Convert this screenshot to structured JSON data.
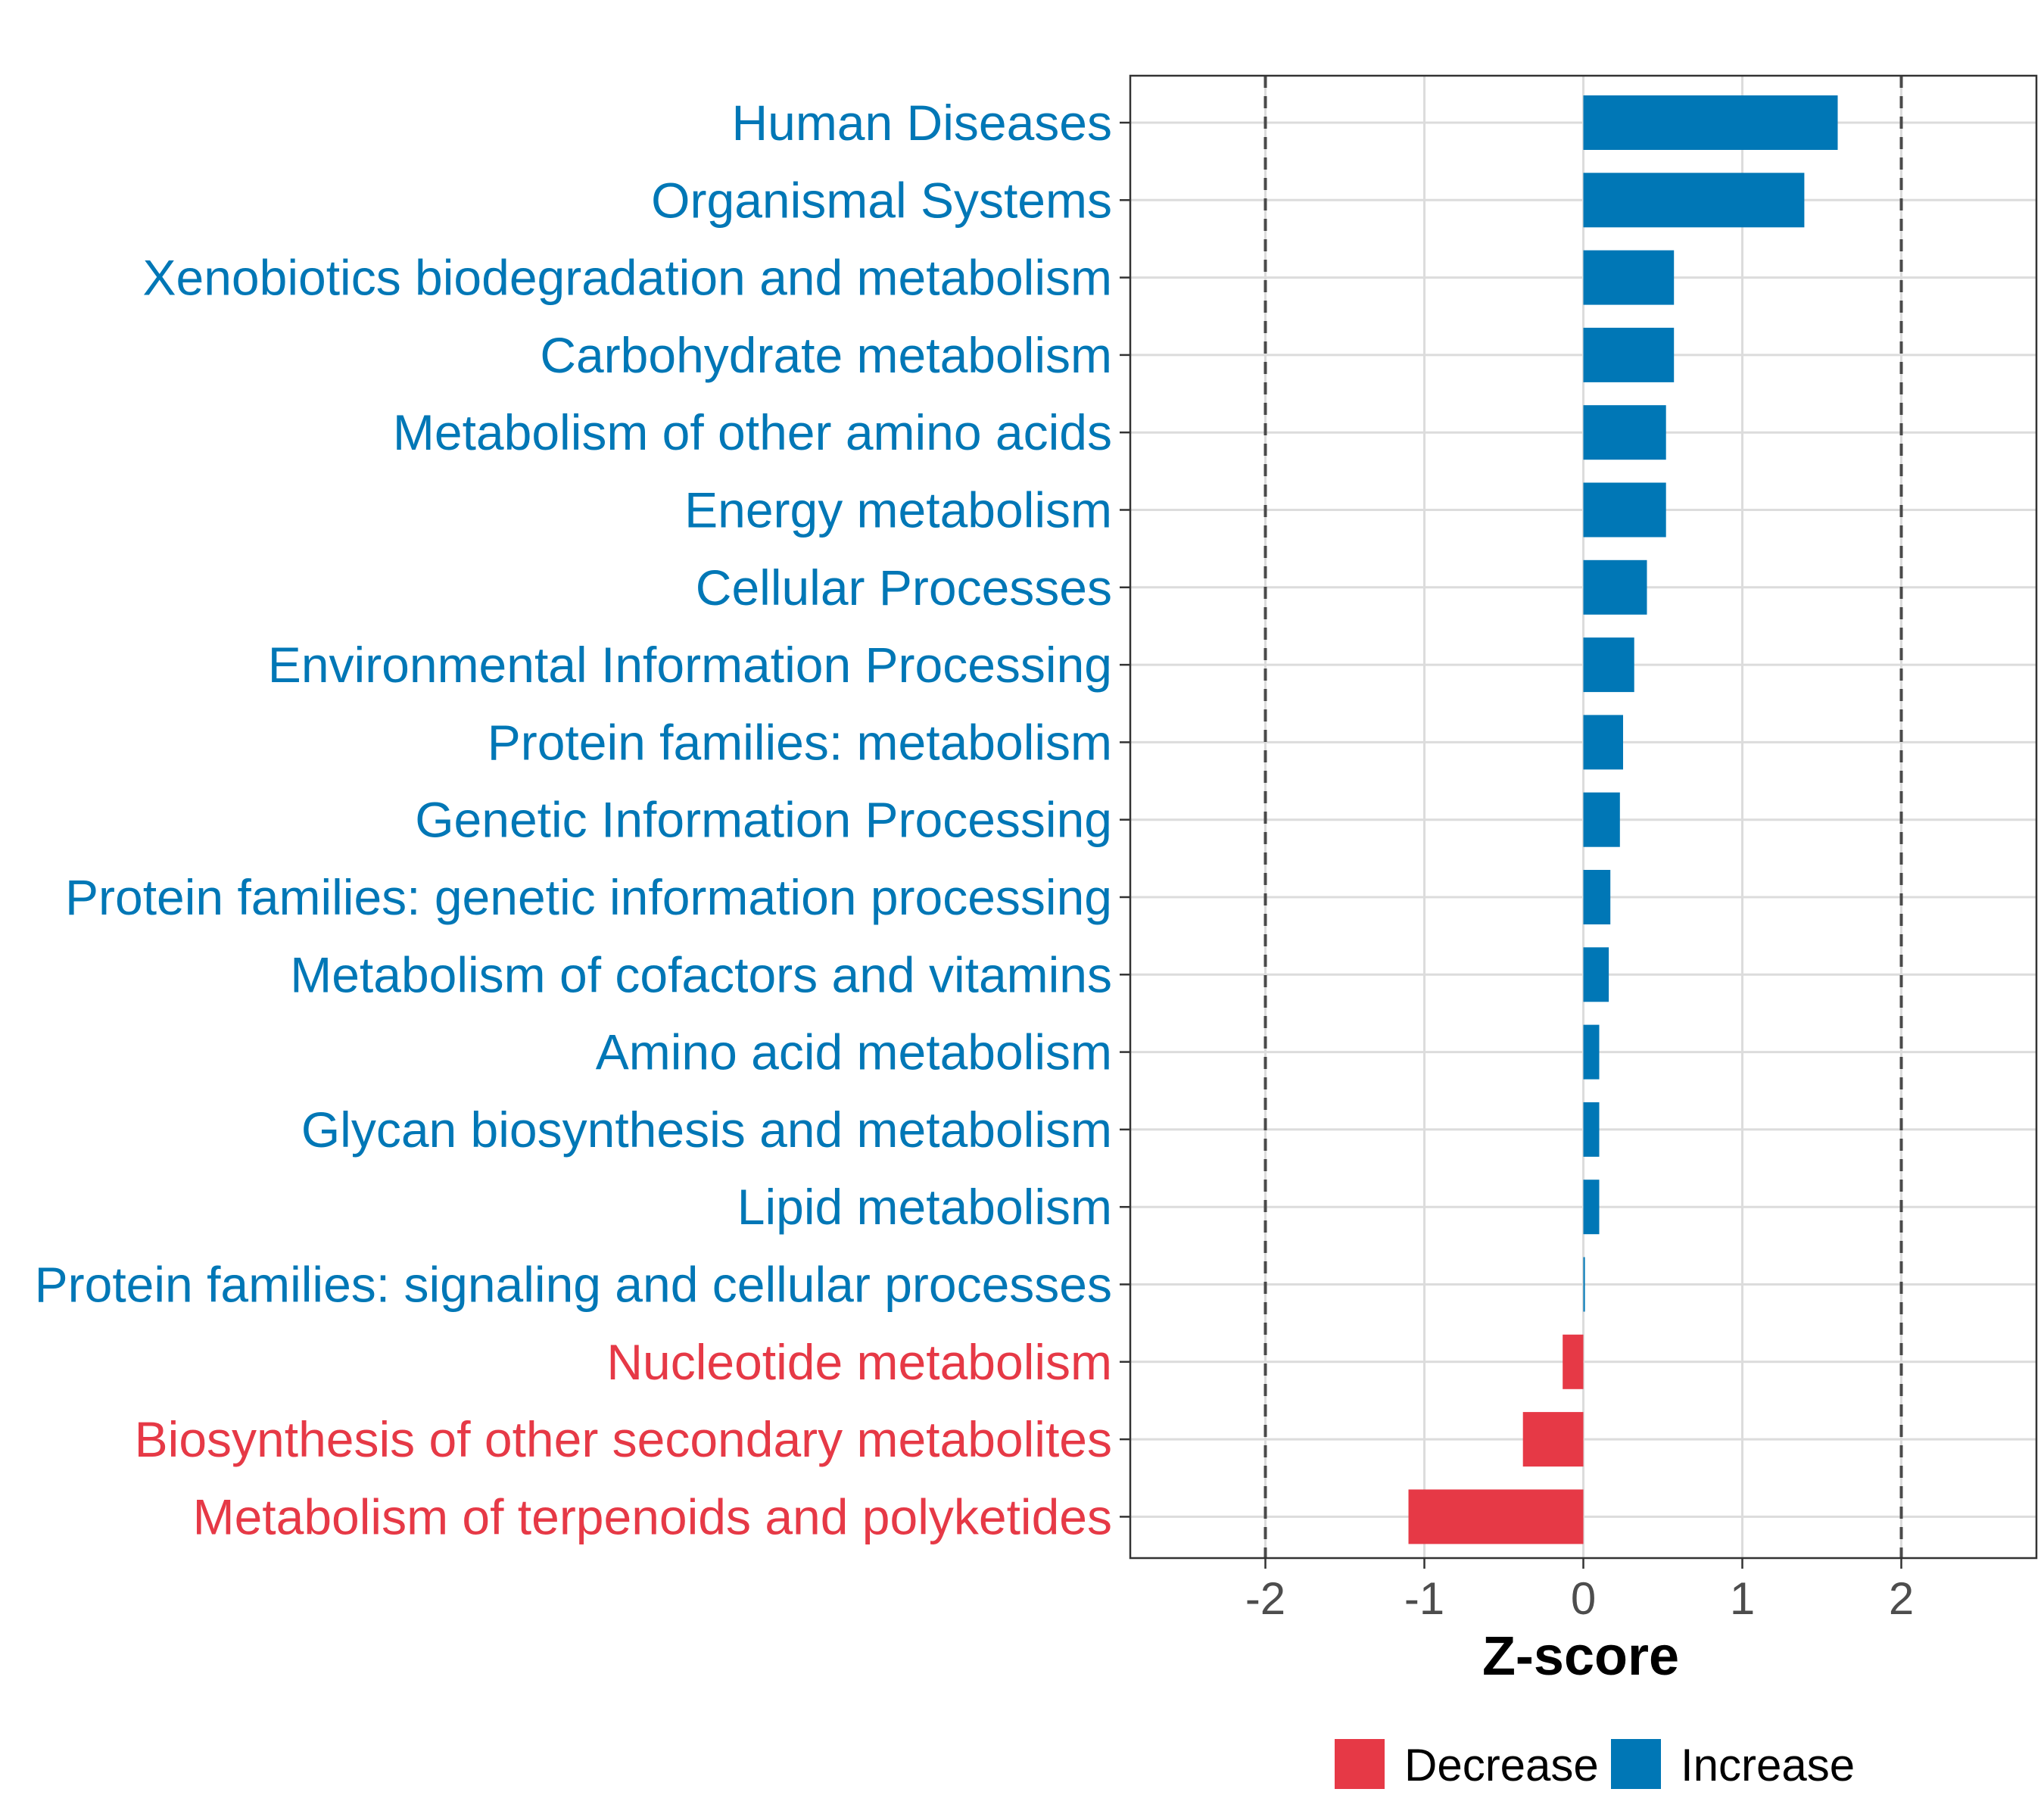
{
  "chart_data": {
    "type": "bar",
    "orientation": "horizontal",
    "title": "",
    "xlabel": "Z-score",
    "ylabel": "",
    "xlim": [
      -2.85,
      2.85
    ],
    "xticks": [
      "-2",
      "-1",
      "0",
      "1",
      "2"
    ],
    "xtick_values": [
      -2,
      -1,
      0,
      1,
      2
    ],
    "reference_lines": [
      -2,
      2
    ],
    "grid": true,
    "legend_position": "bottom",
    "categories": [
      {
        "label": "Human Diseases",
        "value": 1.6,
        "group": "Increase"
      },
      {
        "label": "Organismal Systems",
        "value": 1.39,
        "group": "Increase"
      },
      {
        "label": "Xenobiotics biodegradation and metabolism",
        "value": 0.57,
        "group": "Increase"
      },
      {
        "label": "Carbohydrate metabolism",
        "value": 0.57,
        "group": "Increase"
      },
      {
        "label": "Metabolism of other amino acids",
        "value": 0.52,
        "group": "Increase"
      },
      {
        "label": "Energy metabolism",
        "value": 0.52,
        "group": "Increase"
      },
      {
        "label": "Cellular Processes",
        "value": 0.4,
        "group": "Increase"
      },
      {
        "label": "Environmental Information Processing",
        "value": 0.32,
        "group": "Increase"
      },
      {
        "label": "Protein families: metabolism",
        "value": 0.25,
        "group": "Increase"
      },
      {
        "label": "Genetic Information Processing",
        "value": 0.23,
        "group": "Increase"
      },
      {
        "label": "Protein families: genetic information processing",
        "value": 0.17,
        "group": "Increase"
      },
      {
        "label": "Metabolism of cofactors and vitamins",
        "value": 0.16,
        "group": "Increase"
      },
      {
        "label": "Amino acid metabolism",
        "value": 0.1,
        "group": "Increase"
      },
      {
        "label": "Glycan biosynthesis and metabolism",
        "value": 0.1,
        "group": "Increase"
      },
      {
        "label": "Lipid metabolism",
        "value": 0.1,
        "group": "Increase"
      },
      {
        "label": "Protein families: signaling and cellular processes",
        "value": 0.01,
        "group": "Increase"
      },
      {
        "label": "Nucleotide metabolism",
        "value": -0.13,
        "group": "Decrease"
      },
      {
        "label": "Biosynthesis of other secondary metabolites",
        "value": -0.38,
        "group": "Decrease"
      },
      {
        "label": "Metabolism of terpenoids and polyketides",
        "value": -1.1,
        "group": "Decrease"
      }
    ],
    "legend": [
      {
        "label": "Decrease",
        "color": "#e63946"
      },
      {
        "label": "Increase",
        "color": "#0077b6"
      }
    ],
    "colors": {
      "Increase": "#0077b6",
      "Decrease": "#e63946"
    }
  }
}
